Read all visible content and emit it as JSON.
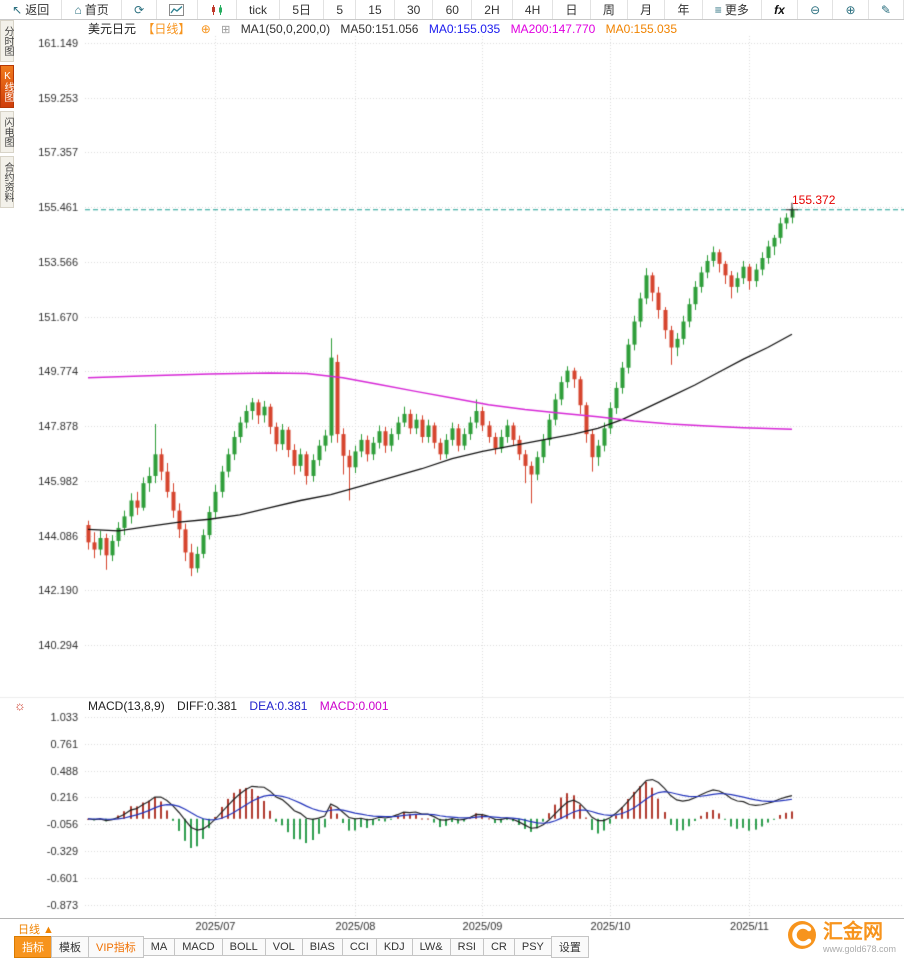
{
  "toolbar": {
    "items": [
      {
        "name": "back",
        "label": "返回",
        "icon": "back"
      },
      {
        "name": "home",
        "label": "首页",
        "icon": "home"
      },
      {
        "name": "refresh",
        "label": "",
        "icon": "refresh"
      },
      {
        "name": "line-chart-mode",
        "label": "",
        "icon": "line-chart"
      },
      {
        "name": "candle-mode",
        "label": "",
        "icon": "candlestick"
      },
      {
        "name": "tick",
        "label": "tick"
      },
      {
        "name": "5d",
        "label": "5日"
      },
      {
        "name": "m5",
        "label": "5"
      },
      {
        "name": "m15",
        "label": "15"
      },
      {
        "name": "m30",
        "label": "30"
      },
      {
        "name": "m60",
        "label": "60"
      },
      {
        "name": "h2",
        "label": "2H"
      },
      {
        "name": "h4",
        "label": "4H"
      },
      {
        "name": "day",
        "label": "日"
      },
      {
        "name": "week",
        "label": "周"
      },
      {
        "name": "month",
        "label": "月"
      },
      {
        "name": "year",
        "label": "年"
      },
      {
        "name": "more",
        "label": "更多",
        "icon": "menu"
      },
      {
        "name": "fx",
        "label": "fx",
        "bold": true
      },
      {
        "name": "zoom-out",
        "label": "",
        "icon": "zoom-out"
      },
      {
        "name": "zoom-in",
        "label": "",
        "icon": "zoom-in"
      },
      {
        "name": "draw",
        "label": "",
        "icon": "pen"
      }
    ]
  },
  "sidebar": {
    "items": [
      {
        "name": "time-chart",
        "label": "分时图",
        "active": false
      },
      {
        "name": "kline-chart",
        "label": "K线图",
        "active": true
      },
      {
        "name": "lightning-chart",
        "label": "闪电图",
        "active": false
      },
      {
        "name": "contract-info",
        "label": "合约资料",
        "active": false
      }
    ]
  },
  "chart_header": {
    "symbol": "美元日元",
    "period": "【日线】",
    "add_icon": "⊕",
    "ma_icon": "⊞",
    "ma_def": "MA1(50,0,200,0)",
    "ma50": "MA50:151.056",
    "ma0_blue": "MA0:155.035",
    "ma200": "MA200:147.770",
    "ma0_orange": "MA0:155.035"
  },
  "macd_header": {
    "gear_icon": "☼",
    "title": "MACD(13,8,9)",
    "diff": "DIFF:0.381",
    "dea": "DEA:0.381",
    "macd": "MACD:0.001"
  },
  "price_marker": {
    "label": "155.372"
  },
  "xaxis": {
    "period_label": "日线 ▲"
  },
  "bottom_tabs": {
    "tabs": [
      {
        "name": "indicator",
        "label": "指标",
        "active": true
      },
      {
        "name": "template",
        "label": "模板"
      },
      {
        "name": "vip-indicator",
        "label": "VIP指标",
        "vip": true
      },
      {
        "name": "ma",
        "label": "MA"
      },
      {
        "name": "macd",
        "label": "MACD"
      },
      {
        "name": "boll",
        "label": "BOLL"
      },
      {
        "name": "vol",
        "label": "VOL"
      },
      {
        "name": "bias",
        "label": "BIAS"
      },
      {
        "name": "cci",
        "label": "CCI"
      },
      {
        "name": "kdj",
        "label": "KDJ"
      },
      {
        "name": "lw",
        "label": "LW&"
      },
      {
        "name": "rsi",
        "label": "RSI"
      },
      {
        "name": "cr",
        "label": "CR"
      },
      {
        "name": "psy",
        "label": "PSY"
      },
      {
        "name": "settings",
        "label": "设置"
      }
    ]
  },
  "logo": {
    "name": "汇金网",
    "url": "www.gold678.com"
  },
  "chart_data": {
    "type": "candlestick",
    "symbol": "美元日元 (USD/JPY)",
    "period": "日线",
    "indicator": "MACD(13,8,9)",
    "last_price": 155.372,
    "ma_values": {
      "ma50": 151.056,
      "ma200": 147.77,
      "ma0": 155.035
    },
    "macd_values": {
      "diff": 0.381,
      "dea": 0.381,
      "macd": 0.001
    },
    "y_ticks": [
      161.149,
      159.253,
      157.357,
      155.461,
      153.566,
      151.67,
      149.774,
      147.878,
      145.982,
      144.086,
      142.19,
      140.294
    ],
    "macd_y_ticks": [
      1.033,
      0.761,
      0.488,
      0.216,
      -0.056,
      -0.329,
      -0.601,
      -0.873
    ],
    "x_ticks": [
      {
        "index": 21,
        "label": "2025/07"
      },
      {
        "index": 44,
        "label": "2025/08"
      },
      {
        "index": 65,
        "label": "2025/09"
      },
      {
        "index": 86,
        "label": "2025/10"
      },
      {
        "index": 109,
        "label": "2025/11"
      }
    ],
    "candles": [
      [
        144.45,
        144.6,
        143.6,
        143.85
      ],
      [
        143.85,
        144.2,
        143.3,
        143.6
      ],
      [
        143.6,
        144.25,
        143.4,
        144.0
      ],
      [
        144.0,
        144.15,
        142.9,
        143.4
      ],
      [
        143.4,
        144.1,
        143.2,
        143.9
      ],
      [
        143.9,
        144.55,
        143.7,
        144.35
      ],
      [
        144.35,
        144.95,
        144.1,
        144.75
      ],
      [
        144.75,
        145.55,
        144.5,
        145.3
      ],
      [
        145.3,
        145.6,
        144.8,
        145.05
      ],
      [
        145.05,
        146.1,
        144.95,
        145.9
      ],
      [
        145.9,
        146.45,
        145.6,
        146.15
      ],
      [
        146.15,
        147.95,
        145.9,
        146.9
      ],
      [
        146.9,
        147.1,
        146.0,
        146.3
      ],
      [
        146.3,
        146.6,
        145.4,
        145.6
      ],
      [
        145.6,
        145.9,
        144.7,
        144.95
      ],
      [
        144.95,
        145.2,
        144.0,
        144.3
      ],
      [
        144.3,
        144.5,
        143.2,
        143.5
      ],
      [
        143.5,
        143.8,
        142.68,
        142.95
      ],
      [
        142.95,
        143.7,
        142.8,
        143.45
      ],
      [
        143.45,
        144.3,
        143.3,
        144.1
      ],
      [
        144.1,
        145.1,
        143.95,
        144.9
      ],
      [
        144.9,
        145.85,
        144.7,
        145.6
      ],
      [
        145.6,
        146.5,
        145.4,
        146.3
      ],
      [
        146.3,
        147.1,
        146.1,
        146.9
      ],
      [
        146.9,
        147.7,
        146.7,
        147.5
      ],
      [
        147.5,
        148.2,
        147.3,
        148.0
      ],
      [
        148.0,
        148.6,
        147.8,
        148.4
      ],
      [
        148.4,
        148.85,
        148.1,
        148.7
      ],
      [
        148.7,
        148.8,
        147.95,
        148.25
      ],
      [
        148.25,
        148.75,
        148.0,
        148.55
      ],
      [
        148.55,
        148.65,
        147.6,
        147.85
      ],
      [
        147.85,
        148.0,
        147.0,
        147.25
      ],
      [
        147.25,
        147.95,
        147.05,
        147.75
      ],
      [
        147.75,
        147.85,
        146.8,
        147.05
      ],
      [
        147.05,
        147.25,
        146.2,
        146.5
      ],
      [
        146.5,
        147.1,
        146.3,
        146.9
      ],
      [
        146.9,
        147.0,
        145.85,
        146.15
      ],
      [
        146.15,
        146.9,
        145.95,
        146.7
      ],
      [
        146.7,
        147.4,
        146.5,
        147.2
      ],
      [
        147.2,
        147.75,
        147.0,
        147.55
      ],
      [
        147.55,
        150.92,
        147.3,
        150.25
      ],
      [
        150.1,
        150.35,
        147.3,
        147.6
      ],
      [
        147.6,
        147.8,
        146.2,
        146.85
      ],
      [
        146.85,
        147.05,
        145.3,
        146.45
      ],
      [
        146.45,
        147.2,
        146.25,
        147.0
      ],
      [
        147.0,
        147.6,
        146.8,
        147.4
      ],
      [
        147.4,
        147.55,
        146.65,
        146.9
      ],
      [
        146.9,
        147.5,
        146.7,
        147.3
      ],
      [
        147.3,
        147.9,
        147.1,
        147.7
      ],
      [
        147.7,
        147.85,
        146.95,
        147.2
      ],
      [
        147.2,
        147.8,
        147.0,
        147.6
      ],
      [
        147.6,
        148.2,
        147.4,
        148.0
      ],
      [
        148.0,
        148.55,
        147.85,
        148.3
      ],
      [
        148.3,
        148.45,
        147.6,
        147.8
      ],
      [
        147.8,
        148.3,
        147.6,
        148.1
      ],
      [
        148.1,
        148.25,
        147.3,
        147.5
      ],
      [
        147.5,
        148.1,
        147.3,
        147.9
      ],
      [
        147.9,
        148.0,
        147.1,
        147.3
      ],
      [
        147.3,
        147.45,
        146.7,
        146.9
      ],
      [
        146.9,
        147.6,
        146.75,
        147.4
      ],
      [
        147.4,
        148.0,
        147.2,
        147.8
      ],
      [
        147.8,
        147.95,
        147.0,
        147.2
      ],
      [
        147.2,
        147.8,
        147.05,
        147.6
      ],
      [
        147.6,
        148.2,
        147.4,
        148.0
      ],
      [
        148.0,
        148.8,
        147.8,
        148.4
      ],
      [
        148.4,
        148.55,
        147.7,
        147.9
      ],
      [
        147.9,
        148.05,
        147.3,
        147.5
      ],
      [
        147.5,
        147.65,
        146.9,
        147.1
      ],
      [
        147.1,
        147.75,
        146.95,
        147.5
      ],
      [
        147.5,
        148.1,
        147.3,
        147.9
      ],
      [
        147.9,
        148.0,
        147.2,
        147.4
      ],
      [
        147.4,
        147.55,
        146.7,
        146.9
      ],
      [
        146.9,
        147.05,
        145.9,
        146.5
      ],
      [
        146.5,
        146.65,
        145.2,
        146.2
      ],
      [
        146.2,
        147.0,
        146.0,
        146.8
      ],
      [
        146.8,
        147.6,
        146.6,
        147.4
      ],
      [
        147.4,
        148.3,
        147.2,
        148.1
      ],
      [
        148.1,
        149.0,
        147.9,
        148.8
      ],
      [
        148.8,
        149.6,
        148.6,
        149.4
      ],
      [
        149.4,
        149.95,
        149.2,
        149.8
      ],
      [
        149.8,
        149.9,
        149.2,
        149.5
      ],
      [
        149.5,
        149.6,
        148.3,
        148.6
      ],
      [
        148.6,
        148.7,
        147.3,
        147.6
      ],
      [
        147.6,
        147.75,
        146.3,
        146.8
      ],
      [
        146.8,
        147.4,
        146.5,
        147.2
      ],
      [
        147.2,
        148.0,
        147.0,
        147.8
      ],
      [
        147.8,
        148.7,
        147.6,
        148.5
      ],
      [
        148.5,
        149.4,
        148.3,
        149.2
      ],
      [
        149.2,
        150.1,
        149.0,
        149.9
      ],
      [
        149.9,
        150.9,
        149.7,
        150.7
      ],
      [
        150.7,
        151.7,
        150.5,
        151.5
      ],
      [
        151.5,
        152.5,
        151.3,
        152.3
      ],
      [
        152.3,
        153.35,
        152.1,
        153.1
      ],
      [
        153.1,
        153.2,
        152.2,
        152.5
      ],
      [
        152.5,
        152.7,
        151.6,
        151.9
      ],
      [
        151.9,
        152.0,
        150.9,
        151.2
      ],
      [
        151.2,
        151.35,
        150.0,
        150.6
      ],
      [
        150.6,
        151.1,
        150.3,
        150.9
      ],
      [
        150.9,
        151.7,
        150.7,
        151.5
      ],
      [
        151.5,
        152.3,
        151.3,
        152.1
      ],
      [
        152.1,
        152.9,
        151.9,
        152.7
      ],
      [
        152.7,
        153.4,
        152.5,
        153.2
      ],
      [
        153.2,
        153.8,
        153.0,
        153.6
      ],
      [
        153.6,
        154.1,
        153.4,
        153.9
      ],
      [
        153.9,
        154.0,
        153.2,
        153.5
      ],
      [
        153.5,
        153.6,
        152.8,
        153.1
      ],
      [
        153.1,
        153.25,
        152.3,
        152.7
      ],
      [
        152.7,
        153.2,
        152.5,
        153.0
      ],
      [
        153.0,
        153.6,
        152.8,
        153.4
      ],
      [
        153.4,
        153.5,
        152.6,
        152.9
      ],
      [
        152.9,
        153.5,
        152.7,
        153.3
      ],
      [
        153.3,
        153.9,
        153.1,
        153.7
      ],
      [
        153.7,
        154.3,
        153.5,
        154.1
      ],
      [
        154.1,
        154.5,
        153.8,
        154.4
      ],
      [
        154.4,
        155.1,
        154.2,
        154.9
      ],
      [
        154.9,
        155.25,
        154.7,
        155.1
      ],
      [
        155.1,
        155.45,
        154.9,
        155.37
      ]
    ],
    "ma50": [
      [
        0,
        144.3
      ],
      [
        5,
        144.25
      ],
      [
        10,
        144.4
      ],
      [
        15,
        144.55
      ],
      [
        20,
        144.65
      ],
      [
        25,
        144.8
      ],
      [
        30,
        145.05
      ],
      [
        35,
        145.3
      ],
      [
        40,
        145.5
      ],
      [
        45,
        145.8
      ],
      [
        50,
        146.1
      ],
      [
        55,
        146.4
      ],
      [
        60,
        146.75
      ],
      [
        65,
        147.0
      ],
      [
        70,
        147.2
      ],
      [
        75,
        147.4
      ],
      [
        80,
        147.6
      ],
      [
        84,
        147.8
      ],
      [
        88,
        148.1
      ],
      [
        92,
        148.5
      ],
      [
        96,
        148.9
      ],
      [
        100,
        149.3
      ],
      [
        104,
        149.75
      ],
      [
        108,
        150.2
      ],
      [
        112,
        150.6
      ],
      [
        116,
        151.06
      ]
    ],
    "ma200": [
      [
        0,
        149.55
      ],
      [
        10,
        149.62
      ],
      [
        20,
        149.68
      ],
      [
        30,
        149.72
      ],
      [
        36,
        149.7
      ],
      [
        42,
        149.55
      ],
      [
        48,
        149.32
      ],
      [
        54,
        149.08
      ],
      [
        60,
        148.85
      ],
      [
        66,
        148.62
      ],
      [
        72,
        148.45
      ],
      [
        78,
        148.32
      ],
      [
        84,
        148.2
      ],
      [
        90,
        148.05
      ],
      [
        96,
        147.95
      ],
      [
        102,
        147.88
      ],
      [
        108,
        147.82
      ],
      [
        116,
        147.77
      ]
    ],
    "colors": {
      "up": "#2f9e3a",
      "down": "#d6452e",
      "ma50": "#111111",
      "ma200": "#d626d6",
      "diff_line": "#222222",
      "dea_line": "#2233bb",
      "hist_pos": "#b03a2e",
      "hist_neg": "#2f9e4f",
      "last_price_line": "#1b9e92",
      "last_price_text": "#e60000",
      "accent_orange": "#f7941d",
      "grid": "#dcdcdc"
    }
  }
}
